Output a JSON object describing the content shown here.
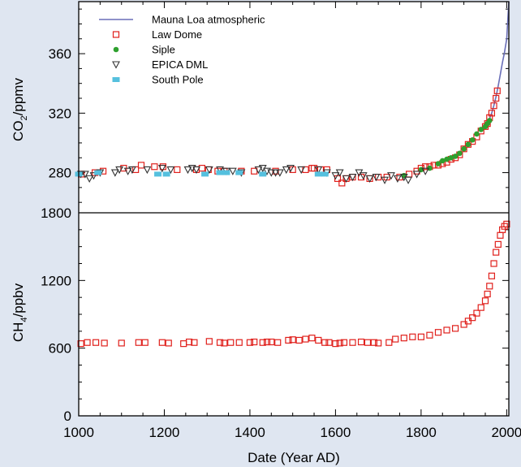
{
  "chart_data": [
    {
      "type": "scatter",
      "panel": "co2",
      "ylabel_main": "CO",
      "ylabel_sub": "2",
      "ylabel_rest": "/ppmv",
      "xlim": [
        1000,
        2005
      ],
      "ylim": [
        253,
        395
      ],
      "yticks": [
        280,
        320,
        360
      ],
      "series": [
        {
          "name": "Mauna Loa atmospheric",
          "marker": "line",
          "color": "#6a6fb8",
          "x": [
            1958,
            1965,
            1970,
            1975,
            1980,
            1985,
            1990,
            1995,
            2000,
            2005
          ],
          "y": [
            315,
            320,
            325,
            331,
            338,
            346,
            354,
            361,
            370,
            395
          ]
        },
        {
          "name": "Law Dome",
          "marker": "square-open",
          "color": "#e0201c",
          "x": [
            1006,
            1038,
            1057,
            1105,
            1133,
            1146,
            1177,
            1197,
            1230,
            1275,
            1288,
            1303,
            1325,
            1340,
            1380,
            1410,
            1460,
            1500,
            1530,
            1545,
            1550,
            1565,
            1580,
            1605,
            1615,
            1625,
            1640,
            1660,
            1680,
            1700,
            1720,
            1750,
            1772,
            1790,
            1800,
            1810,
            1820,
            1830,
            1840,
            1850,
            1860,
            1870,
            1880,
            1890,
            1900,
            1910,
            1920,
            1930,
            1940,
            1950,
            1955,
            1960,
            1965,
            1970,
            1975,
            1978
          ],
          "y": [
            279,
            280,
            281,
            283,
            282,
            285,
            284,
            284,
            282,
            282,
            283,
            282,
            281,
            281,
            281,
            281,
            281,
            282,
            282,
            283,
            283,
            282,
            282,
            276,
            273,
            276,
            277,
            277,
            276,
            277,
            277,
            277,
            279,
            281,
            283,
            284,
            284,
            285,
            285,
            286,
            287,
            289,
            290,
            292,
            296,
            299,
            301,
            304,
            308,
            311,
            313,
            317,
            320,
            325,
            330,
            335
          ]
        },
        {
          "name": "Siple",
          "marker": "dot",
          "color": "#2ea02e",
          "x": [
            1760,
            1800,
            1820,
            1840,
            1850,
            1860,
            1870,
            1880,
            1890,
            1900,
            1910,
            1920,
            1930,
            1940,
            1950,
            1955,
            1960
          ],
          "y": [
            278,
            282,
            283,
            286,
            288,
            289,
            290,
            291,
            293,
            296,
            299,
            302,
            306,
            309,
            311,
            313,
            315
          ]
        },
        {
          "name": "EPICA DML",
          "marker": "triangle-down-open",
          "color": "#333333",
          "x": [
            1005,
            1015,
            1025,
            1035,
            1050,
            1085,
            1095,
            1115,
            1125,
            1160,
            1195,
            1215,
            1255,
            1265,
            1275,
            1305,
            1330,
            1345,
            1360,
            1380,
            1420,
            1430,
            1440,
            1450,
            1460,
            1470,
            1485,
            1495,
            1520,
            1560,
            1580,
            1600,
            1610,
            1625,
            1640,
            1655,
            1665,
            1680,
            1695,
            1715,
            1730,
            1745,
            1760,
            1770,
            1790,
            1810
          ],
          "y": [
            279,
            279,
            276,
            278,
            280,
            280,
            282,
            281,
            282,
            282,
            283,
            282,
            282,
            283,
            282,
            282,
            282,
            281,
            281,
            280,
            282,
            283,
            281,
            280,
            280,
            280,
            282,
            283,
            282,
            282,
            280,
            278,
            280,
            276,
            277,
            280,
            278,
            276,
            277,
            275,
            278,
            276,
            277,
            275,
            279,
            281
          ]
        },
        {
          "name": "South Pole",
          "marker": "square-filled",
          "color": "#55c0de",
          "x": [
            1000,
            1045,
            1185,
            1205,
            1295,
            1330,
            1345,
            1375,
            1430,
            1560,
            1575
          ],
          "y": [
            279,
            280,
            279,
            279,
            279,
            280,
            280,
            280,
            279,
            279,
            279
          ]
        }
      ]
    },
    {
      "type": "scatter",
      "panel": "ch4",
      "ylabel_main": "CH",
      "ylabel_sub": "4",
      "ylabel_rest": "/ppbv",
      "xlabel": "Date (Year AD)",
      "xlim": [
        1000,
        2005
      ],
      "ylim": [
        0,
        1800
      ],
      "yticks": [
        0,
        600,
        1200,
        1800
      ],
      "xticks": [
        1000,
        1200,
        1400,
        1600,
        1800,
        2000
      ],
      "series": [
        {
          "name": "Law Dome",
          "marker": "square-open",
          "color": "#e0201c",
          "x": [
            1005,
            1020,
            1040,
            1060,
            1100,
            1140,
            1155,
            1195,
            1210,
            1245,
            1258,
            1270,
            1305,
            1330,
            1340,
            1355,
            1375,
            1400,
            1410,
            1430,
            1440,
            1450,
            1465,
            1490,
            1500,
            1515,
            1530,
            1545,
            1560,
            1575,
            1585,
            1600,
            1610,
            1620,
            1640,
            1660,
            1675,
            1690,
            1700,
            1725,
            1740,
            1760,
            1780,
            1800,
            1820,
            1840,
            1860,
            1880,
            1900,
            1910,
            1920,
            1930,
            1940,
            1950,
            1955,
            1960,
            1965,
            1970,
            1975,
            1980,
            1985,
            1990,
            1995,
            2000
          ],
          "y": [
            640,
            650,
            650,
            645,
            645,
            650,
            650,
            650,
            645,
            640,
            655,
            650,
            660,
            650,
            645,
            650,
            650,
            650,
            655,
            650,
            655,
            655,
            650,
            670,
            675,
            670,
            680,
            690,
            670,
            650,
            650,
            640,
            645,
            650,
            650,
            655,
            650,
            650,
            645,
            650,
            680,
            690,
            700,
            700,
            715,
            740,
            760,
            775,
            810,
            840,
            870,
            910,
            960,
            1020,
            1080,
            1150,
            1240,
            1350,
            1450,
            1520,
            1600,
            1650,
            1680,
            1700
          ]
        }
      ]
    }
  ]
}
